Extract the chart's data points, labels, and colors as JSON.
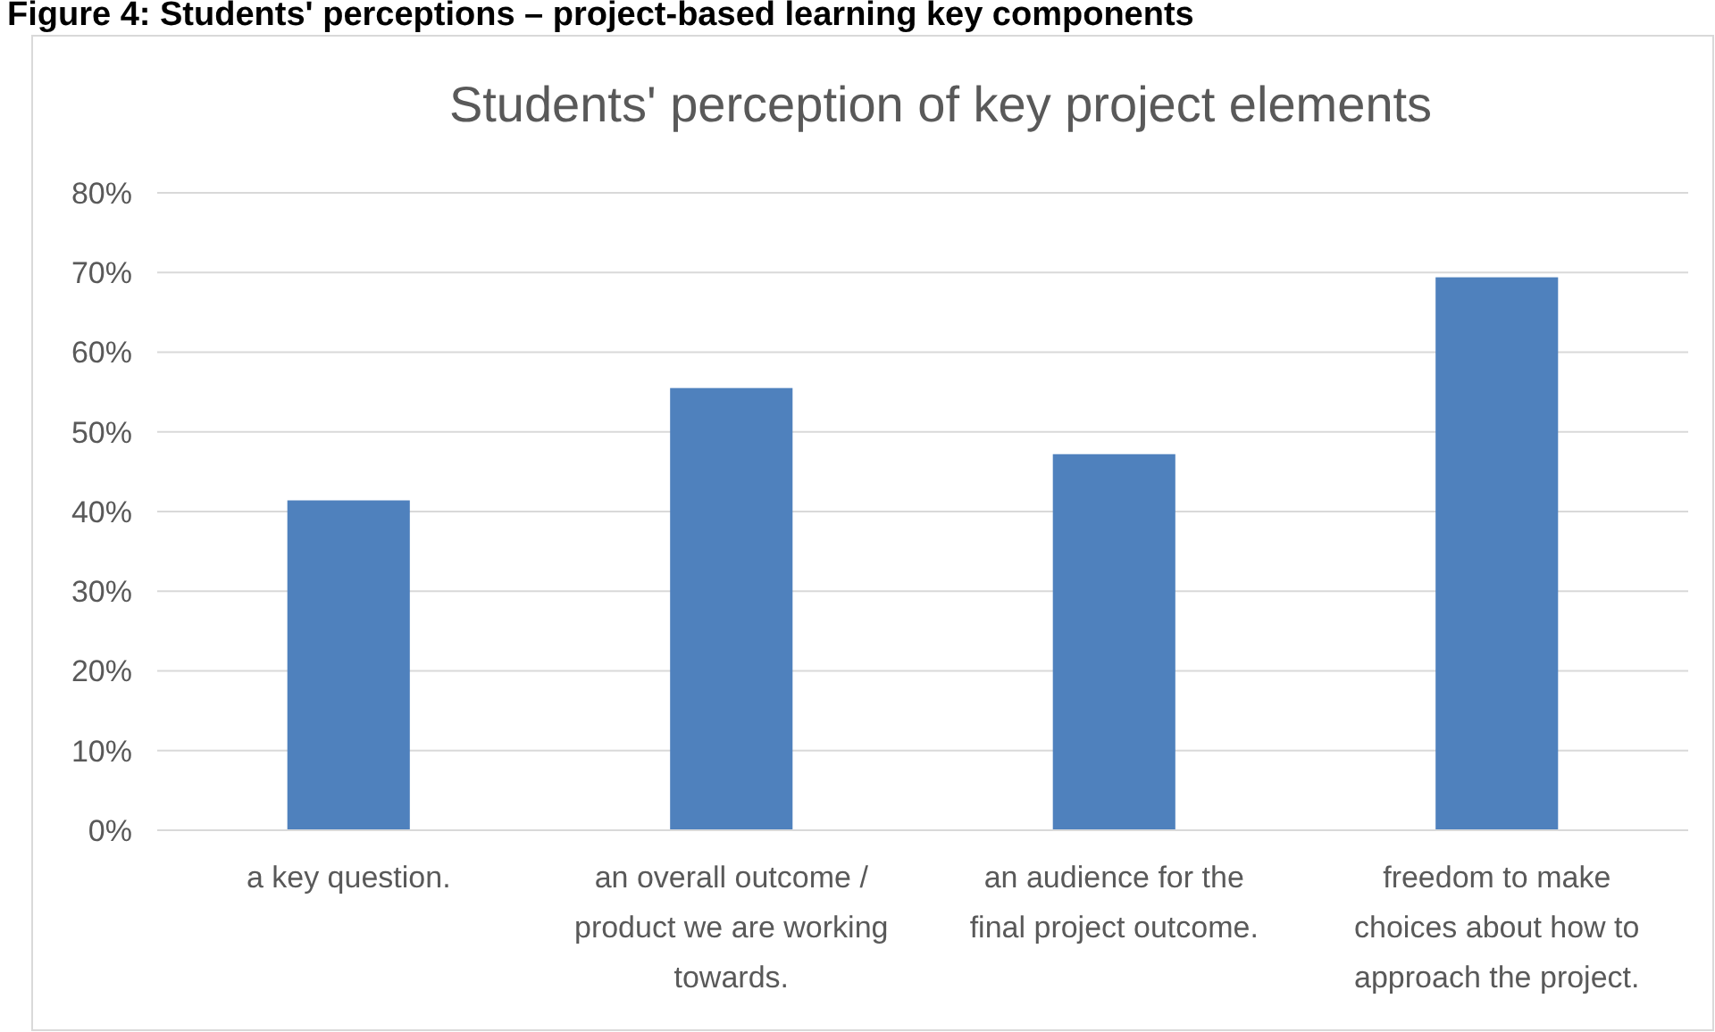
{
  "chart_data": {
    "type": "bar",
    "title": "Students' perception of key project elements",
    "annotations": [
      "Figure 4: Students' perceptions – project-based learning key components"
    ],
    "categories": [
      "a key question.",
      "an overall outcome / product we are working towards.",
      "an audience for the final project outcome.",
      "freedom to make choices about how to approach the project."
    ],
    "values": [
      0.414,
      0.555,
      0.472,
      0.694
    ],
    "color": "#4f81bd",
    "ylim": [
      0,
      0.8
    ],
    "yticks": [
      {
        "value": 0,
        "label": "0%"
      },
      {
        "value": 0.1,
        "label": "10%"
      },
      {
        "value": 0.2,
        "label": "20%"
      },
      {
        "value": 0.3,
        "label": "30%"
      },
      {
        "value": 0.4,
        "label": "40%"
      },
      {
        "value": 0.5,
        "label": "50%"
      },
      {
        "value": 0.6,
        "label": "60%"
      },
      {
        "value": 0.7,
        "label": "70%"
      },
      {
        "value": 0.8,
        "label": "80%"
      }
    ],
    "grid": "y"
  }
}
